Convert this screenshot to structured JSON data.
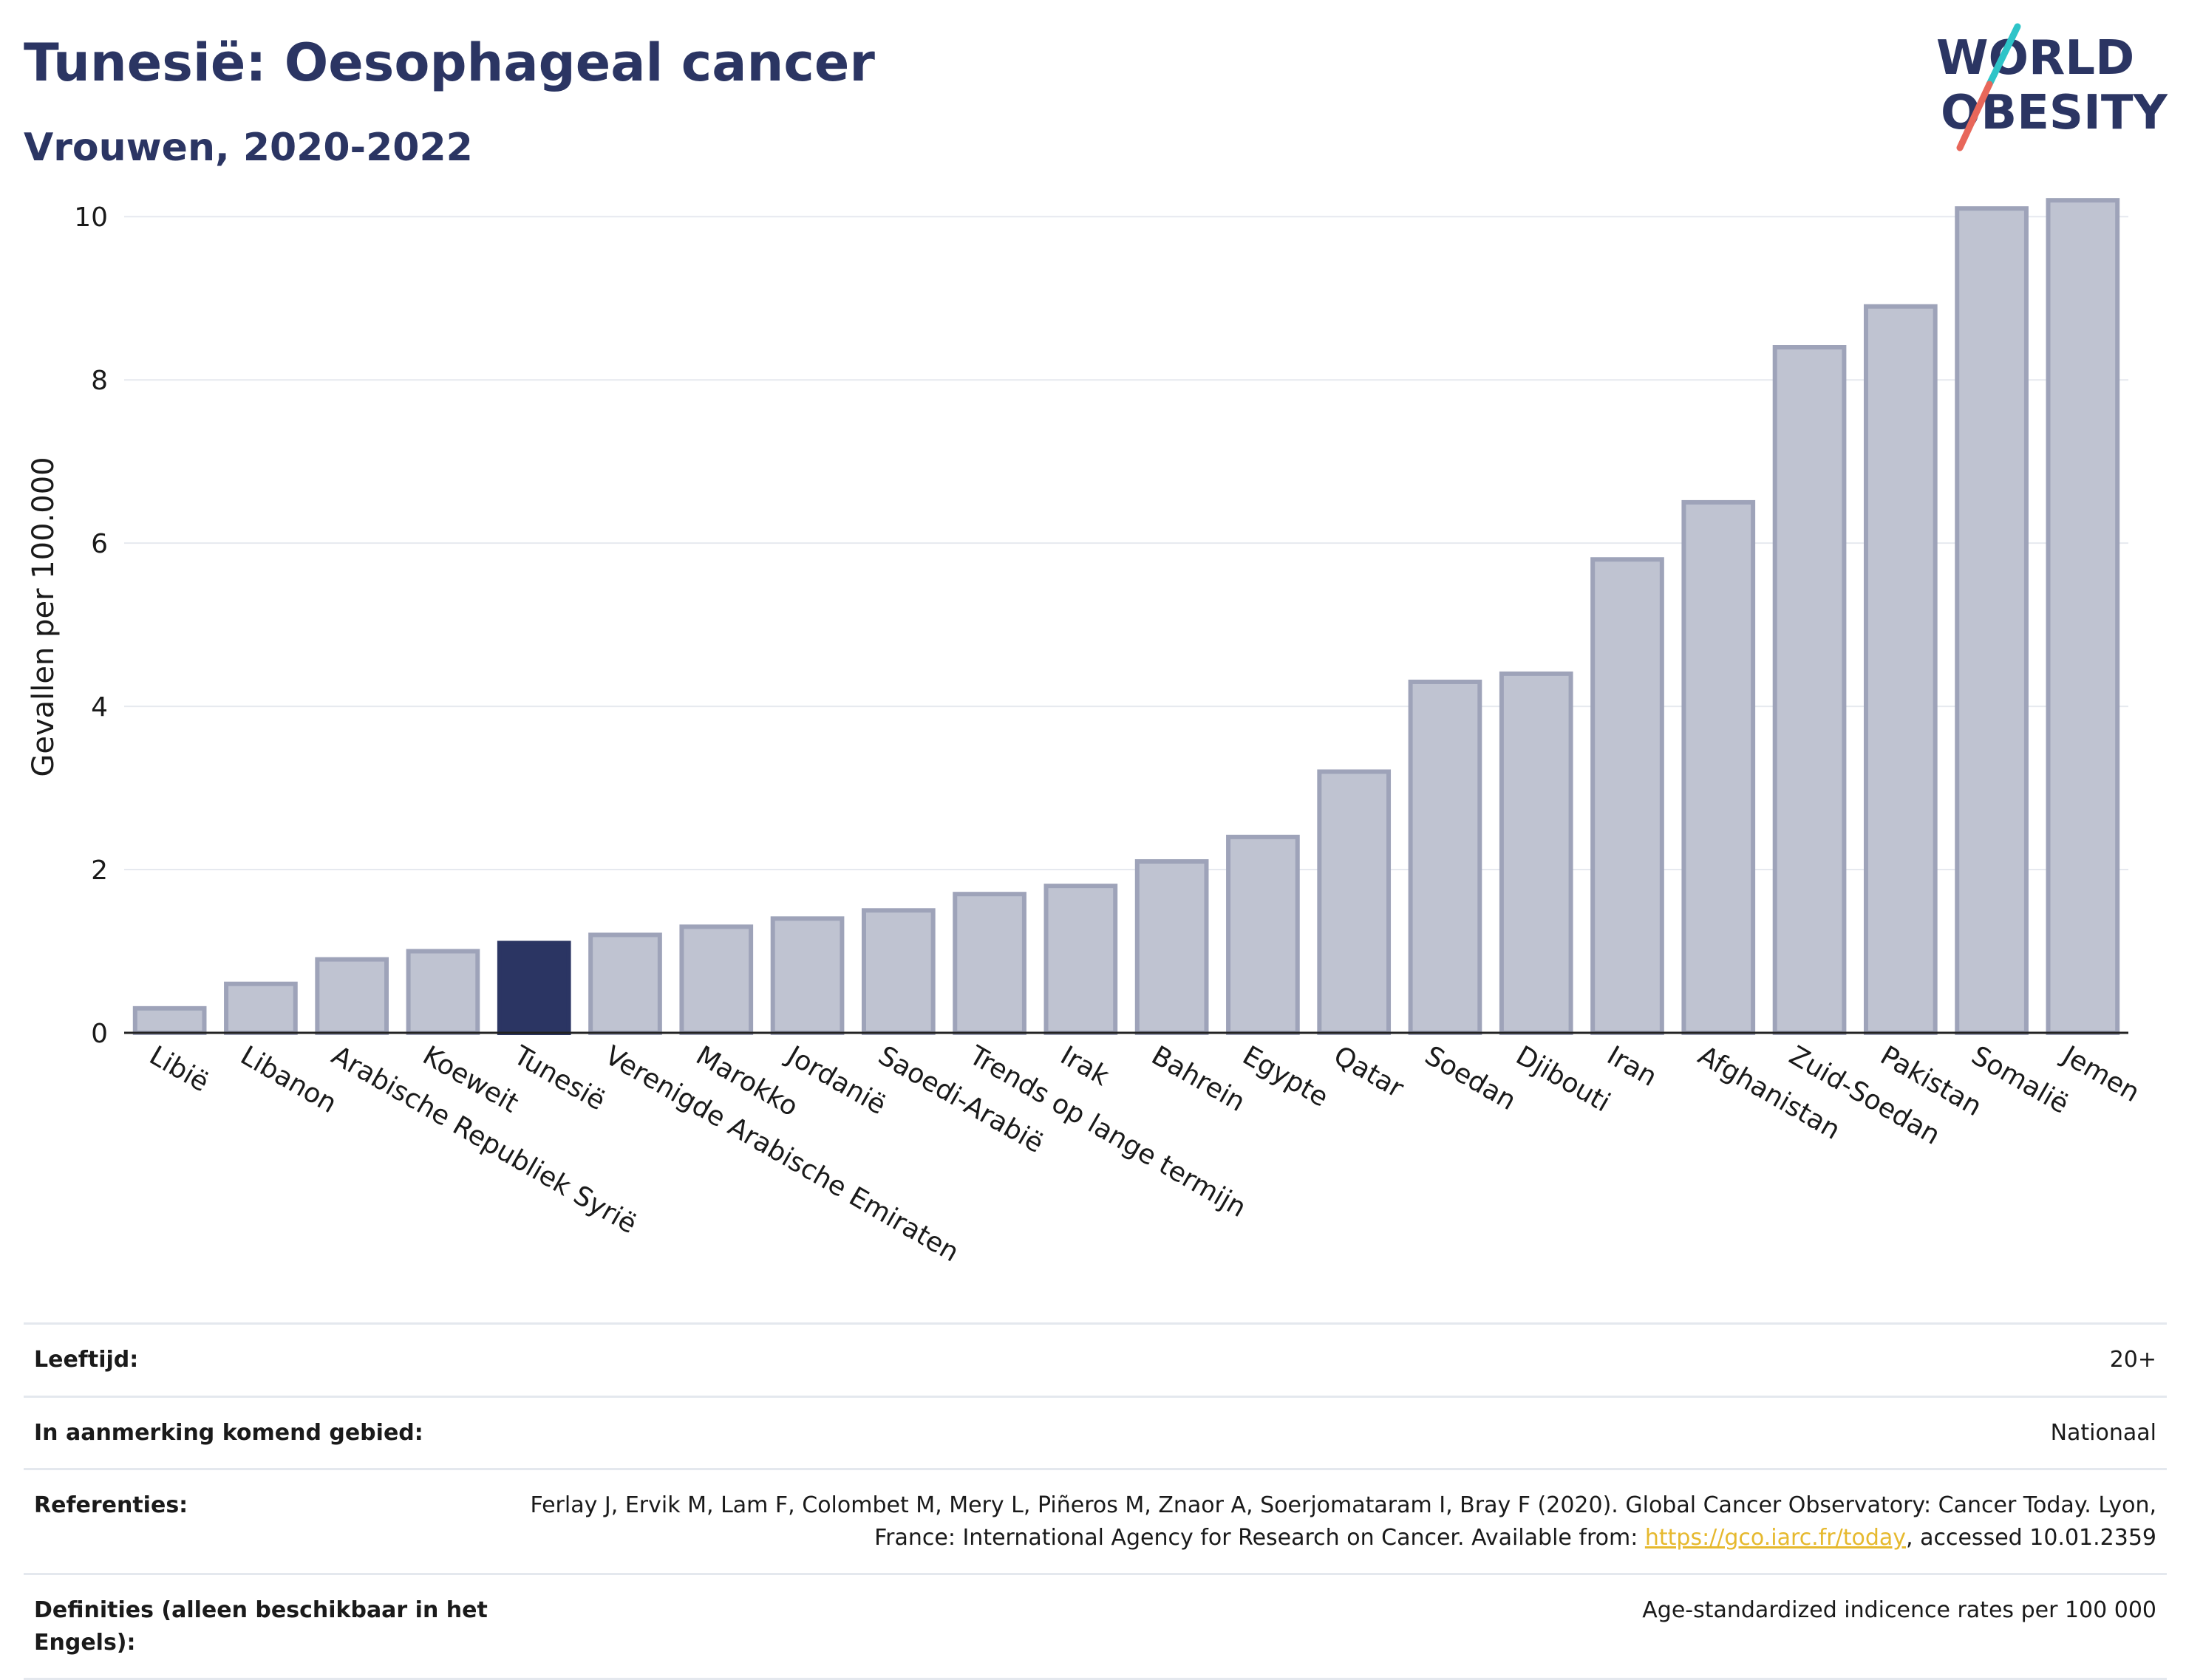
{
  "header": {
    "title": "Tunesië: Oesophageal cancer",
    "subtitle": "Vrouwen, 2020-2022"
  },
  "logo": {
    "line1": "WORLD",
    "line2": "OBESITY",
    "brand_color": "#2b3563",
    "slash_teal": "#2ec4c8",
    "slash_red": "#e8675a"
  },
  "colors": {
    "bar": "#bfc3d1",
    "bar_stroke": "#9ea3b9",
    "highlight": "#2b3563",
    "grid": "#e6e9ef"
  },
  "chart_data": {
    "type": "bar",
    "title": "Tunesië: Oesophageal cancer",
    "subtitle": "Vrouwen, 2020-2022",
    "ylabel": "Gevallen per 100.000",
    "xlabel": "",
    "ylim": [
      0,
      10.5
    ],
    "yticks": [
      0,
      2,
      4,
      6,
      8,
      10
    ],
    "grid": true,
    "highlight": "Tunesië",
    "categories": [
      "Libië",
      "Libanon",
      "Arabische Republiek Syrië",
      "Koeweit",
      "Tunesië",
      "Verenigde Arabische Emiraten",
      "Marokko",
      "Jordanië",
      "Saoedi-Arabië",
      "Trends op lange termijn",
      "Irak",
      "Bahrein",
      "Egypte",
      "Qatar",
      "Soedan",
      "Djibouti",
      "Iran",
      "Afghanistan",
      "Zuid-Soedan",
      "Pakistan",
      "Somalië",
      "Jemen"
    ],
    "values": [
      0.3,
      0.6,
      0.9,
      1.0,
      1.1,
      1.2,
      1.3,
      1.4,
      1.5,
      1.7,
      1.8,
      2.1,
      2.4,
      3.2,
      4.3,
      4.4,
      5.8,
      6.5,
      8.4,
      8.9,
      10.1,
      10.2
    ]
  },
  "info": {
    "age_label": "Leeftijd:",
    "age_value": "20+",
    "region_label": "In aanmerking komend gebied:",
    "region_value": "Nationaal",
    "ref_label": "Referenties:",
    "ref_text": "Ferlay J, Ervik M, Lam F, Colombet M, Mery L, Piñeros M, Znaor A, Soerjomataram I, Bray F (2020). Global Cancer Observatory: Cancer Today. Lyon, France: International Agency for Research on Cancer. Available from: ",
    "ref_link": "https://gco.iarc.fr/today",
    "ref_suffix": ", accessed 10.01.2359",
    "def_label": "Definities (alleen beschikbaar in het Engels):",
    "def_value": "Age-standardized indicence rates per 100 000"
  }
}
